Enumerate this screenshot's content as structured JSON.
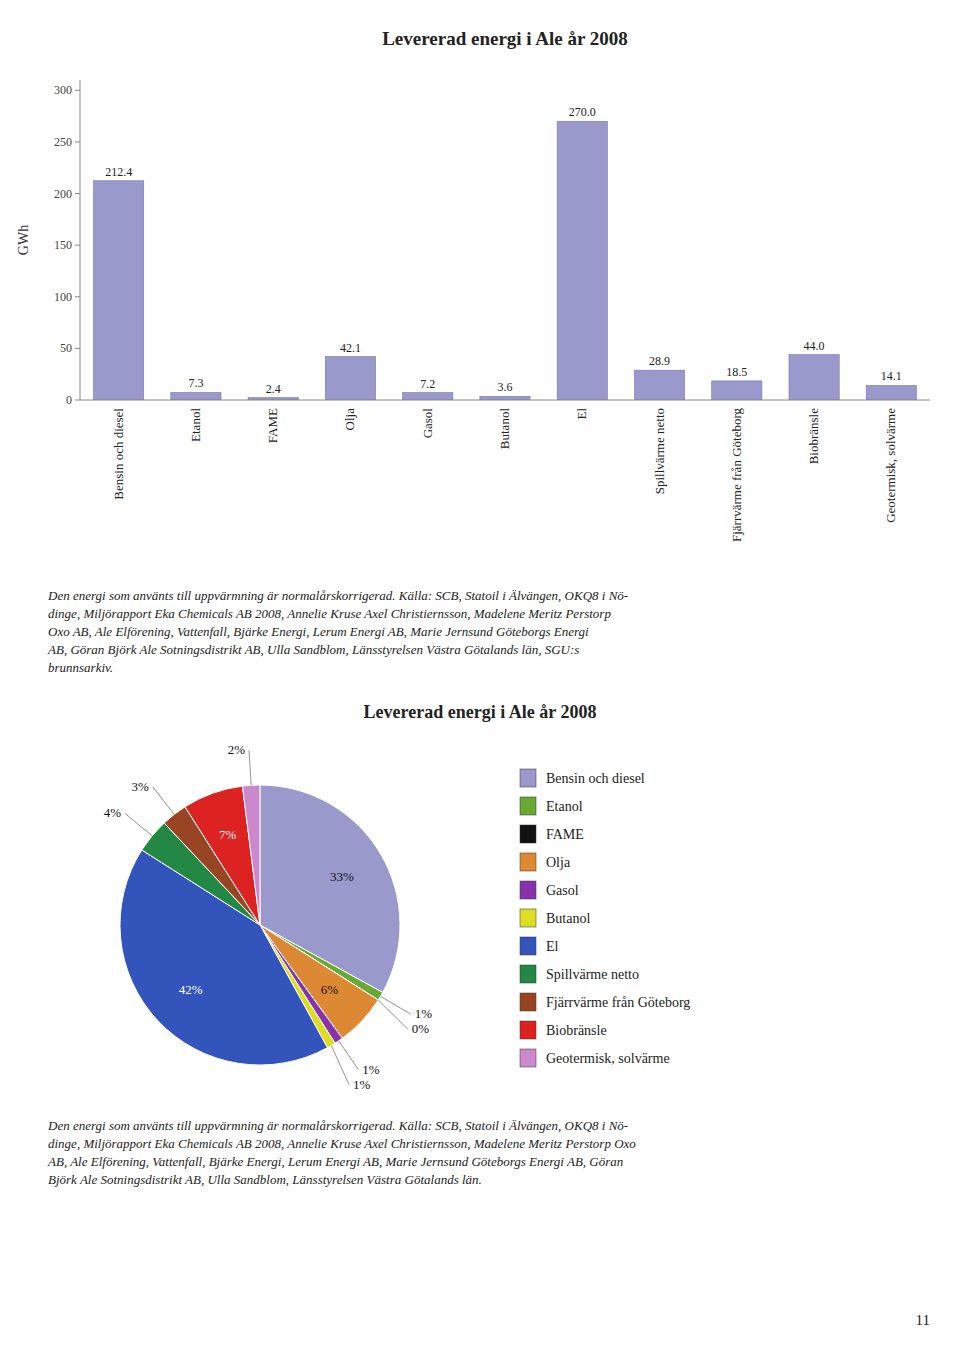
{
  "chart_data": [
    {
      "type": "bar",
      "title": "Levererad energi i Ale år 2008",
      "categories": [
        "Bensin och diesel",
        "Etanol",
        "FAME",
        "Olja",
        "Gasol",
        "Butanol",
        "El",
        "Spillvärme netto",
        "Fjärrvärme från Göteborg",
        "Biobränsle",
        "Geotermisk, solvärme"
      ],
      "values": [
        212.4,
        7.3,
        2.4,
        42.1,
        7.2,
        3.6,
        270.0,
        28.9,
        18.5,
        44.0,
        14.1
      ],
      "value_labels": [
        "212.4",
        "7.3",
        "2.4",
        "42.1",
        "7.2",
        "3.6",
        "270.0",
        "28.9",
        "18.5",
        "44.0",
        "14.1"
      ],
      "data_labels": true,
      "color": "#9999cc",
      "y_label": "GWh",
      "ylim": [
        0,
        310
      ],
      "yticks": [
        0,
        50,
        100,
        150,
        200,
        250,
        300
      ],
      "grid": false,
      "annotations": [
        "Den energi som använts till uppvärmning är normalårskorrigerad. Källa: SCB, Statoil i Älvängen, OKQ8 i Nö-",
        "dinge, Miljörapport Eka Chemicals AB 2008, Annelie Kruse Axel Christiernsson, Madelene Meritz Perstorp",
        "Oxo AB, Ale Elförening, Vattenfall, Bjärke Energi, Lerum Energi AB, Marie Jernsund Göteborgs Energi",
        "AB, Göran Björk Ale Sotningsdistrikt AB, Ulla Sandblom, Länsstyrelsen Västra Götalands län, SGU:s",
        "brunnsarkiv."
      ]
    },
    {
      "type": "pie",
      "title": "Levererad energi i Ale år 2008",
      "categories": [
        "Bensin och diesel",
        "Etanol",
        "FAME",
        "Olja",
        "Gasol",
        "Butanol",
        "El",
        "Spillvärme netto",
        "Fjärrvärme från Göteborg",
        "Biobränsle",
        "Geotermisk, solvärme"
      ],
      "values": [
        33,
        1,
        0,
        6,
        1,
        1,
        42,
        4,
        3,
        7,
        2
      ],
      "value_labels": [
        "33%",
        "1%",
        "0%",
        "6%",
        "1%",
        "1%",
        "42%",
        "4%",
        "3%",
        "7%",
        "2%"
      ],
      "data_labels": true,
      "colors": [
        "#9999cc",
        "#66aa33",
        "#111111",
        "#dd8833",
        "#8833aa",
        "#dddd22",
        "#3355bb",
        "#228844",
        "#994422",
        "#dd2222",
        "#cc88cc"
      ],
      "legend": "right",
      "annotations": [
        "Den energi som använts till uppvärmning är normalårskorrigerad. Källa: SCB, Statoil i Älvängen, OKQ8 i Nö-",
        "dinge, Miljörapport Eka Chemicals AB 2008, Annelie Kruse Axel Christiernsson, Madelene Meritz Perstorp Oxo",
        "AB, Ale Elförening, Vattenfall, Bjärke Energi, Lerum Energi AB, Marie Jernsund Göteborgs Energi AB, Göran",
        "Björk Ale Sotningsdistrikt AB, Ulla Sandblom, Länsstyrelsen Västra Götalands län.",
        "11"
      ]
    }
  ]
}
